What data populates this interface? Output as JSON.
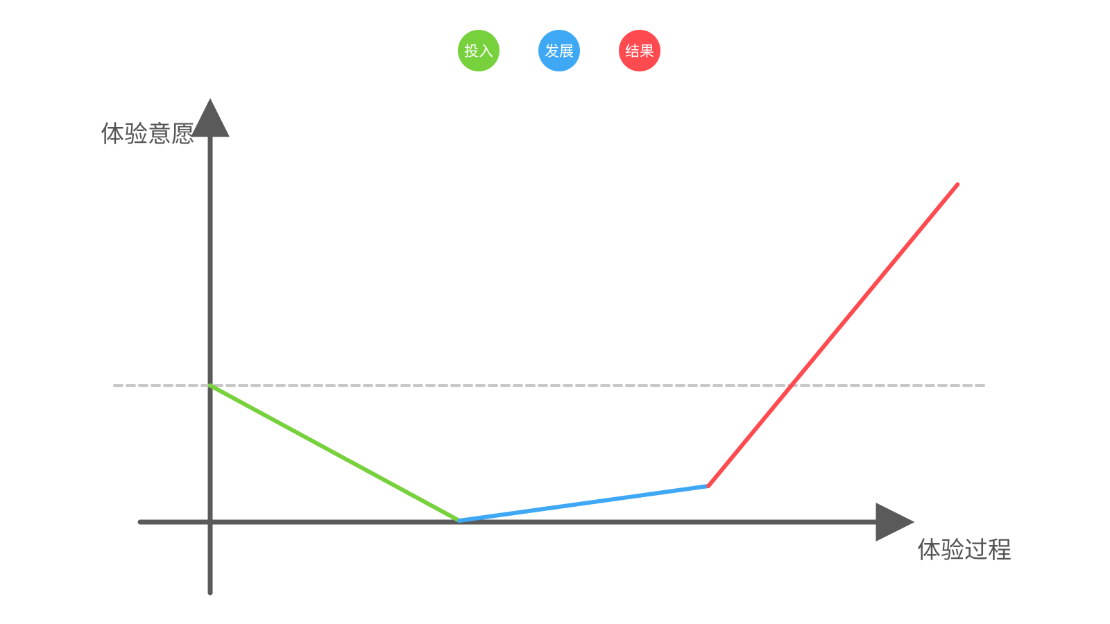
{
  "chart_data": {
    "type": "line",
    "title": "",
    "ylabel": "体验意愿",
    "xlabel": "体验过程",
    "xlim": [
      0,
      1
    ],
    "ylim": [
      0,
      1
    ],
    "grid": false,
    "legend_position": "top-center",
    "axis_color": "#5a5a5a",
    "reference_line": {
      "y": 0.39,
      "style": "dashed",
      "color": "#c8c8c8"
    },
    "series": [
      {
        "name": "投入",
        "color": "#77d13c",
        "points": [
          [
            0.0,
            0.39
          ],
          [
            0.3,
            0.0
          ]
        ]
      },
      {
        "name": "发展",
        "color": "#3fa8f5",
        "points": [
          [
            0.3,
            0.0
          ],
          [
            0.6,
            0.1
          ]
        ]
      },
      {
        "name": "结果",
        "color": "#ff4a4f",
        "points": [
          [
            0.6,
            0.1
          ],
          [
            0.9,
            0.97
          ]
        ]
      }
    ]
  }
}
